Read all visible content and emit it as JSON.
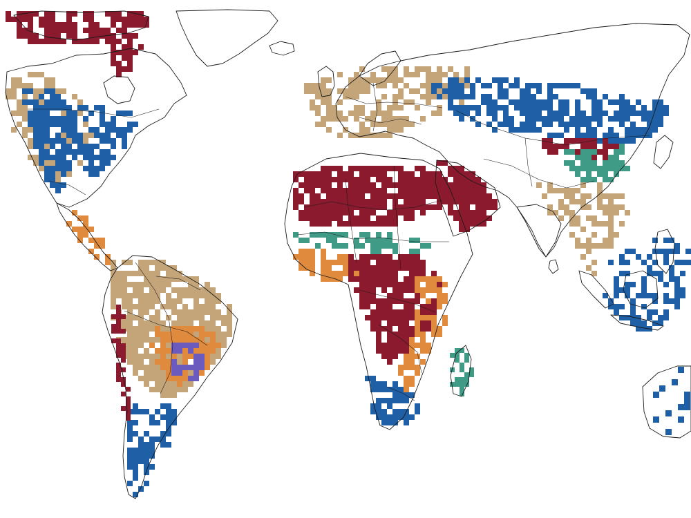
{
  "map": {
    "projection": "equirectangular-world",
    "grid": "coarse-cells",
    "outlines": "coastlines-and-country-borders",
    "legend": "none",
    "classes": [
      {
        "key": "deep-red",
        "color": "#8b1a2e"
      },
      {
        "key": "tan",
        "color": "#c4a57a"
      },
      {
        "key": "dark-blue",
        "color": "#1f5fa6"
      },
      {
        "key": "light-blue",
        "color": "#a7c1e6"
      },
      {
        "key": "orange",
        "color": "#df8a3c"
      },
      {
        "key": "teal",
        "color": "#3f9a86"
      },
      {
        "key": "purple",
        "color": "#6c5bbf"
      }
    ],
    "regions": [
      {
        "name": "canadian-arctic",
        "cls": "deep-red"
      },
      {
        "name": "north-america-west",
        "cls": "tan"
      },
      {
        "name": "north-america-central",
        "cls": "dark-blue"
      },
      {
        "name": "north-america-east",
        "cls": "dark-blue"
      },
      {
        "name": "mexico-central-america",
        "cls": "orange"
      },
      {
        "name": "amazon",
        "cls": "tan"
      },
      {
        "name": "brazil-cerrado",
        "cls": "orange"
      },
      {
        "name": "brazil-core",
        "cls": "purple"
      },
      {
        "name": "southern-cone",
        "cls": "dark-blue"
      },
      {
        "name": "andes-west",
        "cls": "deep-red"
      },
      {
        "name": "europe",
        "cls": "tan"
      },
      {
        "name": "northern-eurasia",
        "cls": "dark-blue"
      },
      {
        "name": "sahara",
        "cls": "deep-red"
      },
      {
        "name": "arabia",
        "cls": "deep-red"
      },
      {
        "name": "sahel",
        "cls": "teal"
      },
      {
        "name": "west-africa",
        "cls": "orange"
      },
      {
        "name": "central-africa",
        "cls": "deep-red"
      },
      {
        "name": "east-africa",
        "cls": "orange"
      },
      {
        "name": "southern-africa",
        "cls": "dark-blue"
      },
      {
        "name": "madagascar",
        "cls": "teal"
      },
      {
        "name": "tibet-plateau",
        "cls": "teal"
      },
      {
        "name": "central-asia",
        "cls": "deep-red"
      },
      {
        "name": "south-asia-se-asia",
        "cls": "tan"
      },
      {
        "name": "maritime-se-asia",
        "cls": "dark-blue"
      },
      {
        "name": "australia",
        "cls": "dark-blue"
      }
    ]
  }
}
